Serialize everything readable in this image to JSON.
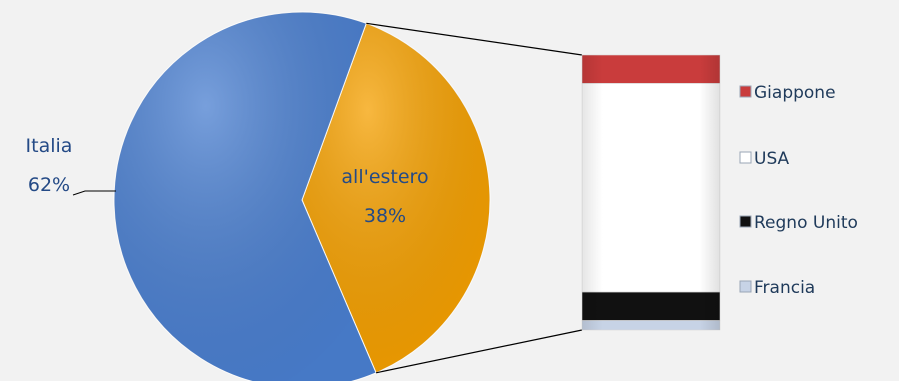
{
  "chart_data": {
    "type": "pie",
    "pie": {
      "slices": [
        {
          "label": "Italia",
          "percent_label": "62%",
          "value": 62,
          "color": "#4a7fd0"
        },
        {
          "label": "all'estero",
          "percent_label": "38%",
          "value": 38,
          "color": "#f5a000"
        }
      ]
    },
    "breakdown": {
      "of_slice": "all'estero",
      "type": "stacked-bar",
      "segments": [
        {
          "label": "Giappone",
          "value": 9,
          "color": "#c93c3c"
        },
        {
          "label": "USA",
          "value": 66,
          "color": "#ffffff"
        },
        {
          "label": "Regno Unito",
          "value": 9,
          "color": "#111111"
        },
        {
          "label": "Francia",
          "value": 3,
          "color": "#c7d3e6"
        }
      ]
    },
    "legend": {
      "placement": "right",
      "entries": [
        "Giappone",
        "USA",
        "Regno Unito",
        "Francia"
      ]
    },
    "label_color": "#1f3a5a",
    "slice_label_color": "#244a86"
  }
}
